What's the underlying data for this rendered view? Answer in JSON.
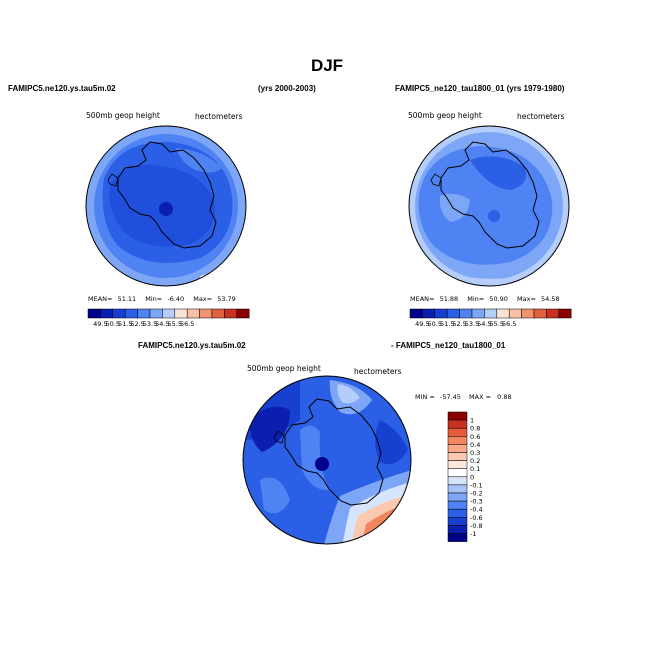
{
  "figure": {
    "title": "DJF",
    "left_header": "FAMIPC5.ne120.ys.tau5m.02",
    "center_header": "(yrs 2000-2003)",
    "right_header": "FAMIPC5_ne120_tau1800_01 (yrs 1979-1980)",
    "diff_left_header": "FAMIPC5.ne120.ys.tau5m.02",
    "diff_right_header": "- FAMIPC5_ne120_tau1800_01"
  },
  "colors": {
    "abs_scale": [
      "#00008b",
      "#0a1fb0",
      "#1740d0",
      "#2a5fe6",
      "#4f82f2",
      "#7ea6f7",
      "#b4cdfb",
      "#fbe4d6",
      "#f8c0a4",
      "#f2926e",
      "#e06040",
      "#c83020",
      "#8b0000"
    ],
    "diff_scale": [
      "#00008b",
      "#0a1fb0",
      "#1740d0",
      "#2a5fe6",
      "#4f82f2",
      "#7ea6f7",
      "#a7c3fa",
      "#d6e4fd",
      "#ffffff",
      "#fde6dc",
      "#fbc9b2",
      "#f8a988",
      "#f28460",
      "#e55a3a",
      "#c83020",
      "#8b0000"
    ]
  },
  "chart_data": [
    {
      "type": "heatmap",
      "projection": "south-polar-stereographic",
      "panel": "top-left",
      "left_label": "500mb geop height",
      "right_label": "hectometers",
      "mean_label": "MEAN=",
      "mean": "51.11",
      "min_label": "Min=",
      "min": "-6.40",
      "max_label": "Max=",
      "max": "53.79",
      "colorbar_ticks": [
        "49.5",
        "50.5",
        "51.5",
        "52.5",
        "53.5",
        "54.5",
        "55.5",
        "56.5"
      ],
      "colorbar_position": "bottom"
    },
    {
      "type": "heatmap",
      "projection": "south-polar-stereographic",
      "panel": "top-right",
      "left_label": "500mb geop height",
      "right_label": "hectometers",
      "mean_label": "MEAN=",
      "mean": "51.88",
      "min_label": "Min=",
      "min": "50.90",
      "max_label": "Max=",
      "max": "54.58",
      "colorbar_ticks": [
        "49.5",
        "50.5",
        "51.5",
        "52.5",
        "53.5",
        "54.5",
        "55.5",
        "56.5"
      ],
      "colorbar_position": "bottom"
    },
    {
      "type": "heatmap",
      "projection": "south-polar-stereographic",
      "panel": "bottom-difference",
      "left_label": "500mb geop height",
      "right_label": "hectometers",
      "min_label": "MIN =",
      "min": "-57.45",
      "max_label": "MAX =",
      "max": "0.88",
      "colorbar_ticks": [
        "1",
        "0.8",
        "0.6",
        "0.4",
        "0.3",
        "0.2",
        "0.1",
        "0",
        "-0.1",
        "-0.2",
        "-0.3",
        "-0.4",
        "-0.6",
        "-0.8",
        "-1"
      ],
      "colorbar_position": "right"
    }
  ]
}
